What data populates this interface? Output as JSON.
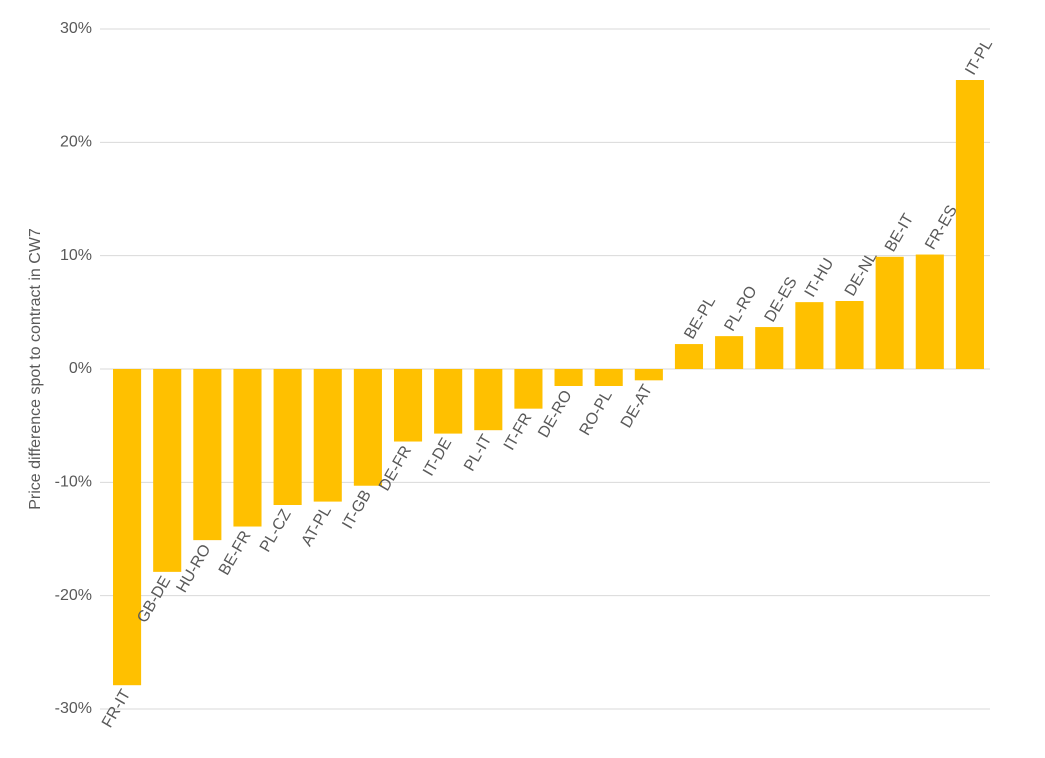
{
  "chart_data": {
    "type": "bar",
    "ylabel": "Price difference spot to contract in CW7",
    "categories": [
      "FR-IT",
      "GB-DE",
      "HU-RO",
      "BE-FR",
      "PL-CZ",
      "AT-PL",
      "IT-GB",
      "DE-FR",
      "IT-DE",
      "PL-IT",
      "IT-FR",
      "DE-RO",
      "RO-PL",
      "DE-AT",
      "BE-PL",
      "PL-RO",
      "DE-ES",
      "IT-HU",
      "DE-NL",
      "BE-IT",
      "FR-ES",
      "IT-PL"
    ],
    "values": [
      -27.9,
      -17.9,
      -15.1,
      -13.9,
      -12.0,
      -11.7,
      -10.3,
      -6.4,
      -5.7,
      -5.4,
      -3.5,
      -1.5,
      -1.5,
      -1.0,
      2.2,
      2.9,
      3.7,
      5.9,
      6.0,
      9.9,
      10.1,
      25.5
    ],
    "color": "#ffc000",
    "ylim": [
      -30,
      30
    ],
    "yticks": [
      {
        "value": -30,
        "label": "-30%"
      },
      {
        "value": -20,
        "label": "-20%"
      },
      {
        "value": -10,
        "label": "-10%"
      },
      {
        "value": 0,
        "label": "0%"
      },
      {
        "value": 10,
        "label": "10%"
      },
      {
        "value": 20,
        "label": "20%"
      },
      {
        "value": 30,
        "label": "30%"
      }
    ],
    "grid": true
  }
}
